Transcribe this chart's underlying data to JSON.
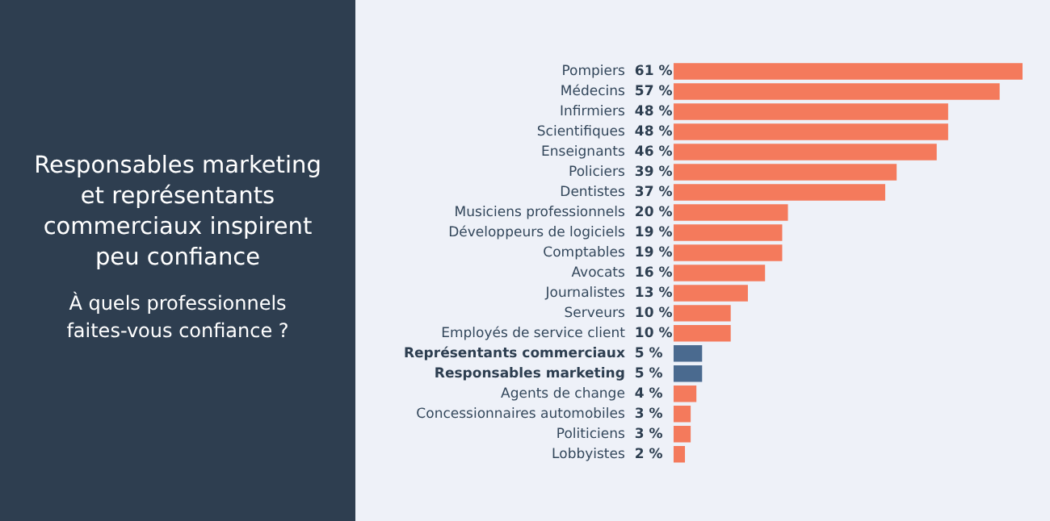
{
  "chart_data": {
    "type": "bar",
    "orientation": "horizontal",
    "title": "Responsables marketing et représentants commerciaux inspirent peu confiance",
    "subtitle": "À quels professionnels faites-vous confiance ?",
    "categories": [
      "Pompiers",
      "Médecins",
      "Infirmiers",
      "Scientifiques",
      "Enseignants",
      "Policiers",
      "Dentistes",
      "Musiciens professionnels",
      "Développeurs de logiciels",
      "Comptables",
      "Avocats",
      "Journalistes",
      "Serveurs",
      "Employés de service client",
      "Représentants commerciaux",
      "Responsables marketing",
      "Agents de change",
      "Concessionnaires automobiles",
      "Politiciens",
      "Lobbyistes"
    ],
    "values": [
      61,
      57,
      48,
      48,
      46,
      39,
      37,
      20,
      19,
      19,
      16,
      13,
      10,
      10,
      5,
      5,
      4,
      3,
      3,
      2
    ],
    "value_labels": [
      "61 %",
      "57 %",
      "48 %",
      "48 %",
      "46 %",
      "39 %",
      "37 %",
      "20 %",
      "19 %",
      "19 %",
      "16 %",
      "13 %",
      "10 %",
      "10 %",
      "5 %",
      "5 %",
      "4 %",
      "3 %",
      "3 %",
      "2 %"
    ],
    "color": "#f47a5c",
    "colors": [
      "#f47a5c",
      "#f47a5c",
      "#f47a5c",
      "#f47a5c",
      "#f47a5c",
      "#f47a5c",
      "#f47a5c",
      "#f47a5c",
      "#f47a5c",
      "#f47a5c",
      "#f47a5c",
      "#f47a5c",
      "#f47a5c",
      "#f47a5c",
      "#4a6a8f",
      "#4a6a8f",
      "#f47a5c",
      "#f47a5c",
      "#f47a5c",
      "#f47a5c"
    ],
    "legend": false
  }
}
